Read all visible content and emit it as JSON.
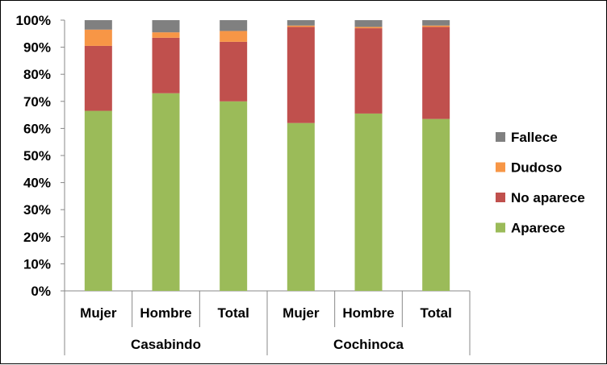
{
  "chart_data": {
    "type": "bar",
    "stacked": true,
    "percent": true,
    "ylim": [
      0,
      100
    ],
    "y_ticks": [
      "0%",
      "10%",
      "20%",
      "30%",
      "40%",
      "50%",
      "60%",
      "70%",
      "80%",
      "90%",
      "100%"
    ],
    "groups": [
      {
        "name": "Casabindo",
        "categories": [
          "Mujer",
          "Hombre",
          "Total"
        ]
      },
      {
        "name": "Cochinoca",
        "categories": [
          "Mujer",
          "Hombre",
          "Total"
        ]
      }
    ],
    "categories": [
      "Mujer",
      "Hombre",
      "Total",
      "Mujer",
      "Hombre",
      "Total"
    ],
    "series": [
      {
        "name": "Aparece",
        "color": "#9BBB59",
        "values": [
          66.5,
          73,
          70,
          62,
          65.5,
          63.5
        ]
      },
      {
        "name": "No aparece",
        "color": "#C0504D",
        "values": [
          24,
          20.5,
          22,
          35.5,
          31.5,
          34
        ]
      },
      {
        "name": "Dudoso",
        "color": "#F79646",
        "values": [
          6,
          2,
          4,
          0.5,
          0.5,
          0.5
        ]
      },
      {
        "name": "Fallece",
        "color": "#808080",
        "values": [
          3.5,
          4.5,
          4,
          2,
          2.5,
          2
        ]
      }
    ],
    "legend_order": [
      "Fallece",
      "Dudoso",
      "No aparece",
      "Aparece"
    ],
    "legend_position": "right",
    "grid": false
  }
}
